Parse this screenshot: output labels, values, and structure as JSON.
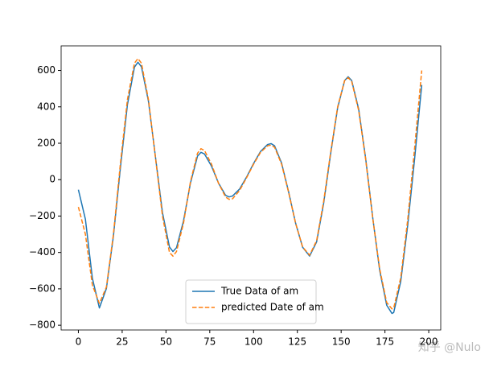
{
  "chart_data": {
    "type": "line",
    "x": [
      0,
      4,
      8,
      12,
      16,
      20,
      24,
      28,
      32,
      34,
      36,
      40,
      44,
      48,
      52,
      54,
      56,
      60,
      64,
      68,
      70,
      72,
      76,
      80,
      84,
      86,
      88,
      92,
      96,
      100,
      104,
      108,
      110,
      112,
      116,
      120,
      124,
      128,
      132,
      136,
      140,
      144,
      148,
      152,
      154,
      156,
      160,
      164,
      168,
      172,
      176,
      179,
      180,
      184,
      188,
      192,
      196
    ],
    "series": [
      {
        "name": "True Data of am",
        "color": "#1f77b4",
        "linestyle": "solid",
        "values": [
          -55,
          -217,
          -542,
          -705,
          -598,
          -310,
          66,
          412,
          618,
          645,
          620,
          431,
          125,
          -181,
          -370,
          -395,
          -374,
          -227,
          -18,
          129,
          150,
          141,
          74,
          -19,
          -86,
          -95,
          -90,
          -52,
          14,
          89,
          155,
          193,
          198,
          186,
          91,
          -67,
          -239,
          -371,
          -420,
          -342,
          -131,
          142,
          395,
          545,
          565,
          545,
          388,
          116,
          -207,
          -499,
          -690,
          -735,
          -730,
          -560,
          -250,
          120,
          520
        ]
      },
      {
        "name": "predicted Date of am",
        "color": "#ff7f0e",
        "linestyle": "dashed",
        "values": [
          -150,
          -300,
          -580,
          -680,
          -590,
          -300,
          90,
          440,
          640,
          665,
          640,
          440,
          120,
          -200,
          -400,
          -420,
          -395,
          -240,
          -10,
          145,
          170,
          160,
          85,
          -20,
          -95,
          -108,
          -105,
          -60,
          10,
          85,
          150,
          186,
          190,
          178,
          85,
          -70,
          -240,
          -370,
          -415,
          -335,
          -120,
          150,
          400,
          545,
          560,
          540,
          380,
          110,
          -210,
          -490,
          -675,
          -710,
          -705,
          -540,
          -220,
          180,
          600
        ]
      }
    ],
    "xlim": [
      -9.85,
      206.85
    ],
    "xticks": [
      0,
      25,
      50,
      75,
      100,
      125,
      150,
      175,
      200
    ],
    "ylim": [
      -826,
      735
    ],
    "yticks": [
      {
        "value": -800,
        "label": "−800"
      },
      {
        "value": -600,
        "label": "−600"
      },
      {
        "value": -400,
        "label": "−400"
      },
      {
        "value": -200,
        "label": "−200"
      },
      0,
      200,
      400,
      600
    ],
    "legend": "lower center"
  },
  "watermark": "知乎 @Nulo"
}
